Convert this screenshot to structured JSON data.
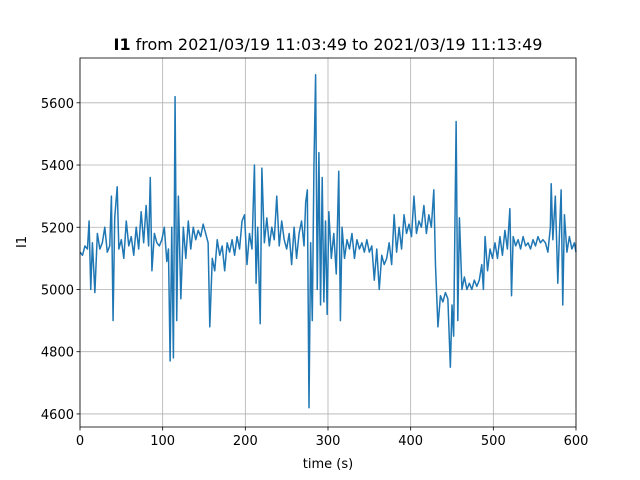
{
  "chart_data": {
    "type": "line",
    "title_bold": "I1",
    "title": "from 2021/03/19 11:03:49 to 2021/03/19 11:13:49",
    "xlabel": "time (s)",
    "ylabel": "I1",
    "color": "#1f77b4",
    "grid": true,
    "xlim": [
      0,
      600
    ],
    "xticks": [
      0,
      100,
      200,
      300,
      400,
      500,
      600
    ],
    "ylim": [
      4558,
      5744
    ],
    "yticks": [
      4600,
      4800,
      5000,
      5200,
      5400,
      5600
    ],
    "x": [
      0,
      3,
      6,
      9,
      11,
      13,
      15,
      18,
      21,
      24,
      27,
      30,
      33,
      36,
      38,
      40,
      42,
      45,
      47,
      50,
      53,
      56,
      59,
      62,
      65,
      68,
      71,
      74,
      77,
      80,
      83,
      85,
      87,
      90,
      93,
      96,
      99,
      102,
      105,
      107,
      109,
      111,
      113,
      115,
      117,
      119,
      122,
      125,
      128,
      131,
      134,
      137,
      140,
      143,
      146,
      149,
      152,
      155,
      157,
      160,
      163,
      166,
      169,
      172,
      175,
      178,
      181,
      184,
      187,
      190,
      193,
      196,
      199,
      202,
      205,
      208,
      211,
      213,
      215,
      218,
      220,
      223,
      226,
      229,
      232,
      235,
      238,
      241,
      244,
      247,
      250,
      253,
      256,
      259,
      262,
      265,
      268,
      271,
      273,
      275,
      277,
      279,
      281,
      283,
      285,
      287,
      289,
      291,
      293,
      295,
      297,
      299,
      301,
      304,
      307,
      310,
      313,
      315,
      317,
      320,
      323,
      326,
      329,
      332,
      335,
      338,
      341,
      344,
      347,
      350,
      353,
      356,
      359,
      362,
      365,
      368,
      371,
      374,
      377,
      380,
      383,
      386,
      389,
      392,
      395,
      398,
      401,
      404,
      407,
      410,
      413,
      416,
      419,
      422,
      425,
      428,
      430,
      433,
      436,
      439,
      442,
      445,
      448,
      450,
      452,
      455,
      457,
      459,
      462,
      465,
      468,
      471,
      474,
      477,
      480,
      483,
      486,
      488,
      490,
      493,
      496,
      499,
      502,
      505,
      508,
      511,
      514,
      517,
      520,
      522,
      524,
      527,
      530,
      533,
      536,
      539,
      542,
      545,
      548,
      551,
      554,
      557,
      560,
      563,
      566,
      569,
      570,
      572,
      575,
      578,
      580,
      582,
      584,
      586,
      589,
      592,
      595,
      598,
      600
    ],
    "values": [
      5120,
      5110,
      5140,
      5130,
      5220,
      5000,
      5150,
      4990,
      5180,
      5130,
      5150,
      5200,
      5120,
      5140,
      5300,
      4900,
      5230,
      5330,
      5130,
      5160,
      5100,
      5220,
      5140,
      5170,
      5110,
      5200,
      5130,
      5250,
      5150,
      5270,
      5140,
      5360,
      5060,
      5180,
      5150,
      5140,
      5160,
      5200,
      5090,
      5130,
      4770,
      5200,
      4780,
      5620,
      4900,
      5300,
      4970,
      5200,
      5100,
      5220,
      5130,
      5200,
      5160,
      5190,
      5170,
      5210,
      5180,
      5150,
      4880,
      5100,
      5060,
      5160,
      5110,
      5140,
      5060,
      5150,
      5120,
      5160,
      5110,
      5170,
      5130,
      5220,
      5240,
      5080,
      5180,
      5130,
      5400,
      5020,
      5200,
      4890,
      5390,
      5150,
      5230,
      5140,
      5200,
      5160,
      5300,
      5140,
      5220,
      5160,
      5130,
      5180,
      5080,
      5200,
      5100,
      5180,
      5220,
      5140,
      5280,
      5320,
      4620,
      5150,
      4900,
      5400,
      5690,
      5000,
      5440,
      4950,
      5360,
      4960,
      5220,
      4920,
      5250,
      5100,
      5180,
      5050,
      5380,
      4900,
      5200,
      5100,
      5160,
      5130,
      5180,
      5100,
      5160,
      5130,
      5150,
      5120,
      5160,
      5120,
      5140,
      5030,
      5130,
      5000,
      5110,
      5080,
      5100,
      5150,
      5080,
      5240,
      5120,
      5200,
      5130,
      5240,
      5180,
      5210,
      5170,
      5300,
      5180,
      5220,
      5200,
      5270,
      5180,
      5240,
      5200,
      5320,
      5080,
      4880,
      4980,
      4960,
      4990,
      4970,
      4750,
      4950,
      4850,
      5540,
      4900,
      5230,
      5000,
      5040,
      5000,
      5020,
      5000,
      5030,
      5010,
      5030,
      5080,
      5000,
      5170,
      5060,
      5130,
      5100,
      5150,
      5100,
      5170,
      5110,
      5190,
      5130,
      5260,
      4980,
      5170,
      5140,
      5160,
      5130,
      5170,
      5140,
      5150,
      5130,
      5160,
      5140,
      5170,
      5150,
      5160,
      5150,
      5120,
      5200,
      5340,
      5160,
      5300,
      5020,
      5180,
      5320,
      4950,
      5240,
      5120,
      5170,
      5130,
      5150,
      5120
    ]
  }
}
